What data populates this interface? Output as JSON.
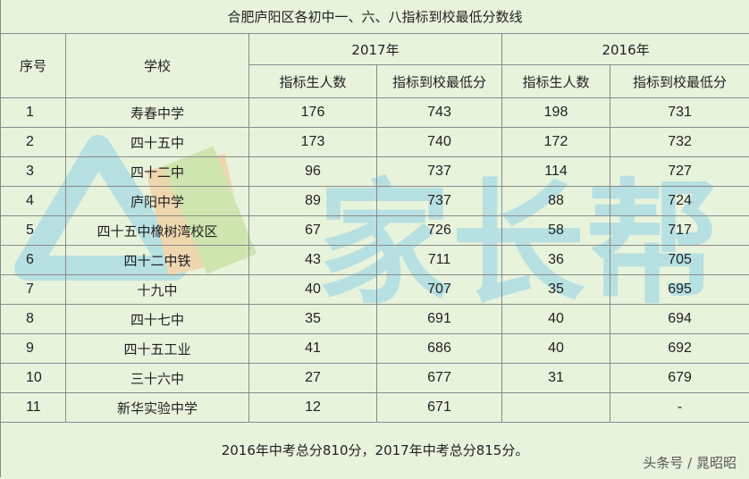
{
  "title": "合肥庐阳区各初中一、六、八指标到校最低分数线",
  "headers": {
    "seq": "序号",
    "school": "学校",
    "year2017": "2017年",
    "year2016": "2016年",
    "quota": "指标生人数",
    "min_score": "指标到校最低分"
  },
  "rows": [
    {
      "seq": "1",
      "school": "寿春中学",
      "q2017": "176",
      "s2017": "743",
      "q2016": "198",
      "s2016": "731"
    },
    {
      "seq": "2",
      "school": "四十五中",
      "q2017": "173",
      "s2017": "740",
      "q2016": "172",
      "s2016": "732"
    },
    {
      "seq": "3",
      "school": "四十二中",
      "q2017": "96",
      "s2017": "737",
      "q2016": "114",
      "s2016": "727"
    },
    {
      "seq": "4",
      "school": "庐阳中学",
      "q2017": "89",
      "s2017": "737",
      "q2016": "88",
      "s2016": "724"
    },
    {
      "seq": "5",
      "school": "四十五中橡树湾校区",
      "q2017": "67",
      "s2017": "726",
      "q2016": "58",
      "s2016": "717"
    },
    {
      "seq": "6",
      "school": "四十二中铁",
      "q2017": "43",
      "s2017": "711",
      "q2016": "36",
      "s2016": "705"
    },
    {
      "seq": "7",
      "school": "十九中",
      "q2017": "40",
      "s2017": "707",
      "q2016": "35",
      "s2016": "695"
    },
    {
      "seq": "8",
      "school": "四十七中",
      "q2017": "35",
      "s2017": "691",
      "q2016": "40",
      "s2016": "694"
    },
    {
      "seq": "9",
      "school": "四十五工业",
      "q2017": "41",
      "s2017": "686",
      "q2016": "40",
      "s2016": "692"
    },
    {
      "seq": "10",
      "school": "三十六中",
      "q2017": "27",
      "s2017": "677",
      "q2016": "31",
      "s2016": "679"
    },
    {
      "seq": "11",
      "school": "新华实验中学",
      "q2017": "12",
      "s2017": "671",
      "q2016": "",
      "s2016": "-"
    }
  ],
  "footnote": "2016年中考总分810分，2017年中考总分815分。",
  "watermark_text": "家长帮",
  "credit": "头条号 / 晁昭昭",
  "colors": {
    "background": "#e8f3dc",
    "watermark_blue": "#8fd0e8",
    "watermark_orange": "#f3c08a",
    "watermark_green": "#b8d98a"
  }
}
